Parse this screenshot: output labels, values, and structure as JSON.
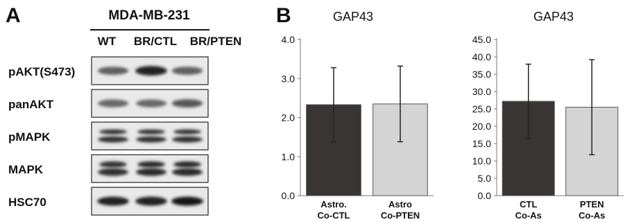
{
  "panel_a": {
    "letter": "A",
    "cell_line": "MDA-MB-231",
    "lanes": [
      "WT",
      "BR/CTL",
      "BR/PTEN"
    ],
    "rows": [
      {
        "label": "pAKT(S473)",
        "bands": [
          0.6,
          0.95,
          0.6
        ],
        "style": "single"
      },
      {
        "label": "panAKT",
        "bands": [
          0.55,
          0.55,
          0.65
        ],
        "style": "single"
      },
      {
        "label": "pMAPK",
        "bands": [
          0.85,
          0.85,
          0.85
        ],
        "style": "double"
      },
      {
        "label": "MAPK",
        "bands": [
          0.85,
          0.9,
          0.9
        ],
        "style": "double-strong"
      },
      {
        "label": "HSC70",
        "bands": [
          0.95,
          0.95,
          1.0
        ],
        "style": "single-strong"
      }
    ]
  },
  "panel_b": {
    "letter": "B"
  },
  "chart_data": [
    {
      "type": "bar",
      "title": "GAP43",
      "categories": [
        [
          "Astro.",
          "Co-CTL"
        ],
        [
          "Astro",
          "Co-PTEN"
        ]
      ],
      "values": [
        2.33,
        2.35
      ],
      "errors": [
        0.95,
        0.97
      ],
      "colors": [
        "#3a3535",
        "#d4d4d4"
      ],
      "ylim": [
        0,
        4
      ],
      "yticks": [
        "0.0",
        "1.0",
        "2.0",
        "3.0",
        "4.0"
      ],
      "ytick_values": [
        0,
        1,
        2,
        3,
        4
      ]
    },
    {
      "type": "bar",
      "title": "GAP43",
      "categories": [
        [
          "CTL",
          "Co-As"
        ],
        [
          "PTEN",
          "Co-As"
        ]
      ],
      "values": [
        27.2,
        25.5
      ],
      "errors": [
        10.7,
        13.7
      ],
      "colors": [
        "#3a3535",
        "#d4d4d4"
      ],
      "ylim": [
        0,
        45
      ],
      "yticks": [
        "0.0",
        "5.0",
        "10.0",
        "15.0",
        "20.0",
        "25.0",
        "30.0",
        "35.0",
        "40.0",
        "45.0"
      ],
      "ytick_values": [
        0,
        5,
        10,
        15,
        20,
        25,
        30,
        35,
        40,
        45
      ]
    }
  ]
}
